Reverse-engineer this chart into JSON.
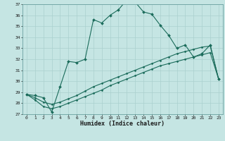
{
  "title": "",
  "xlabel": "Humidex (Indice chaleur)",
  "ylabel": "",
  "background_color": "#c5e5e3",
  "grid_color": "#aad0ce",
  "line_color": "#1a6b5a",
  "xlim": [
    -0.5,
    23.5
  ],
  "ylim": [
    27,
    37
  ],
  "yticks": [
    27,
    28,
    29,
    30,
    31,
    32,
    33,
    34,
    35,
    36,
    37
  ],
  "xticks": [
    0,
    1,
    2,
    3,
    4,
    5,
    6,
    7,
    8,
    9,
    10,
    11,
    12,
    13,
    14,
    15,
    16,
    17,
    18,
    19,
    20,
    21,
    22,
    23
  ],
  "line1_x": [
    0,
    1,
    2,
    3,
    4,
    5,
    6,
    7,
    8,
    9,
    10,
    11,
    12,
    13,
    14,
    15,
    16,
    17,
    18,
    19,
    20,
    21,
    22,
    23
  ],
  "line1_y": [
    28.8,
    28.7,
    28.5,
    27.2,
    29.5,
    31.8,
    31.7,
    32.0,
    35.6,
    35.3,
    36.0,
    36.5,
    37.4,
    37.2,
    36.3,
    36.1,
    35.1,
    34.2,
    33.0,
    33.3,
    32.2,
    32.5,
    33.3,
    30.2
  ],
  "line2_x": [
    0,
    1,
    2,
    3,
    4,
    5,
    6,
    7,
    8,
    9,
    10,
    11,
    12,
    13,
    14,
    15,
    16,
    17,
    18,
    19,
    20,
    21,
    22,
    23
  ],
  "line2_y": [
    28.8,
    28.5,
    28.1,
    27.9,
    28.1,
    28.4,
    28.7,
    29.1,
    29.5,
    29.8,
    30.1,
    30.4,
    30.7,
    31.0,
    31.3,
    31.6,
    31.9,
    32.2,
    32.5,
    32.7,
    32.9,
    33.1,
    33.2,
    30.2
  ],
  "line3_x": [
    0,
    1,
    2,
    3,
    4,
    5,
    6,
    7,
    8,
    9,
    10,
    11,
    12,
    13,
    14,
    15,
    16,
    17,
    18,
    19,
    20,
    21,
    22,
    23
  ],
  "line3_y": [
    28.8,
    28.3,
    27.7,
    27.5,
    27.7,
    28.0,
    28.3,
    28.6,
    28.9,
    29.2,
    29.6,
    29.9,
    30.2,
    30.5,
    30.8,
    31.1,
    31.4,
    31.6,
    31.8,
    32.0,
    32.2,
    32.4,
    32.6,
    30.2
  ]
}
